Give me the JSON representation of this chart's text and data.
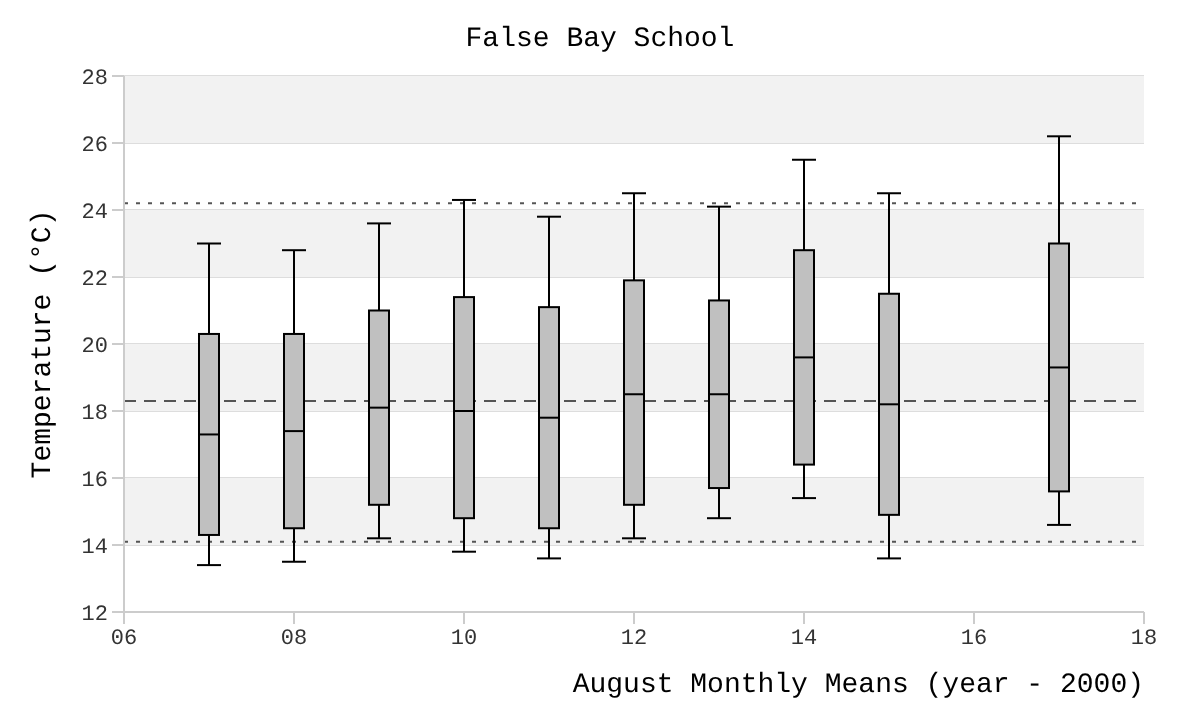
{
  "chart_data": {
    "type": "box",
    "title": "False Bay School",
    "xlabel": "August Monthly Means (year - 2000)",
    "ylabel": "Temperature (°C)",
    "x": [
      7,
      8,
      9,
      10,
      11,
      12,
      13,
      14,
      15,
      17
    ],
    "boxes": [
      {
        "low": 13.4,
        "q1": 14.3,
        "median": 17.3,
        "q3": 20.3,
        "high": 23.0
      },
      {
        "low": 13.5,
        "q1": 14.5,
        "median": 17.4,
        "q3": 20.3,
        "high": 22.8
      },
      {
        "low": 14.2,
        "q1": 15.2,
        "median": 18.1,
        "q3": 21.0,
        "high": 23.6
      },
      {
        "low": 13.8,
        "q1": 14.8,
        "median": 18.0,
        "q3": 21.4,
        "high": 24.3
      },
      {
        "low": 13.6,
        "q1": 14.5,
        "median": 17.8,
        "q3": 21.1,
        "high": 23.8
      },
      {
        "low": 14.2,
        "q1": 15.2,
        "median": 18.5,
        "q3": 21.9,
        "high": 24.5
      },
      {
        "low": 14.8,
        "q1": 15.7,
        "median": 18.5,
        "q3": 21.3,
        "high": 24.1
      },
      {
        "low": 15.4,
        "q1": 16.4,
        "median": 19.6,
        "q3": 22.8,
        "high": 25.5
      },
      {
        "low": 13.6,
        "q1": 14.9,
        "median": 18.2,
        "q3": 21.5,
        "high": 24.5
      },
      {
        "low": 14.6,
        "q1": 15.6,
        "median": 19.3,
        "q3": 23.0,
        "high": 26.2
      }
    ],
    "color": "#c0c0c0",
    "xlim": [
      6,
      18
    ],
    "xticks": [
      {
        "value": 6,
        "label": "06"
      },
      {
        "value": 8,
        "label": "08"
      },
      10,
      12,
      14,
      16,
      18
    ],
    "ylim": [
      12,
      28
    ],
    "yticks": [
      12,
      14,
      16,
      18,
      20,
      22,
      24,
      26,
      28
    ],
    "grid": "y",
    "ref_lines": [
      {
        "axis": "y",
        "value": 24.2,
        "line_style": "dotted",
        "color": "#555555"
      },
      {
        "axis": "y",
        "value": 18.3,
        "line_style": "dashed",
        "color": "#555555"
      },
      {
        "axis": "y",
        "value": 14.1,
        "line_style": "dotted",
        "color": "#555555"
      }
    ]
  }
}
